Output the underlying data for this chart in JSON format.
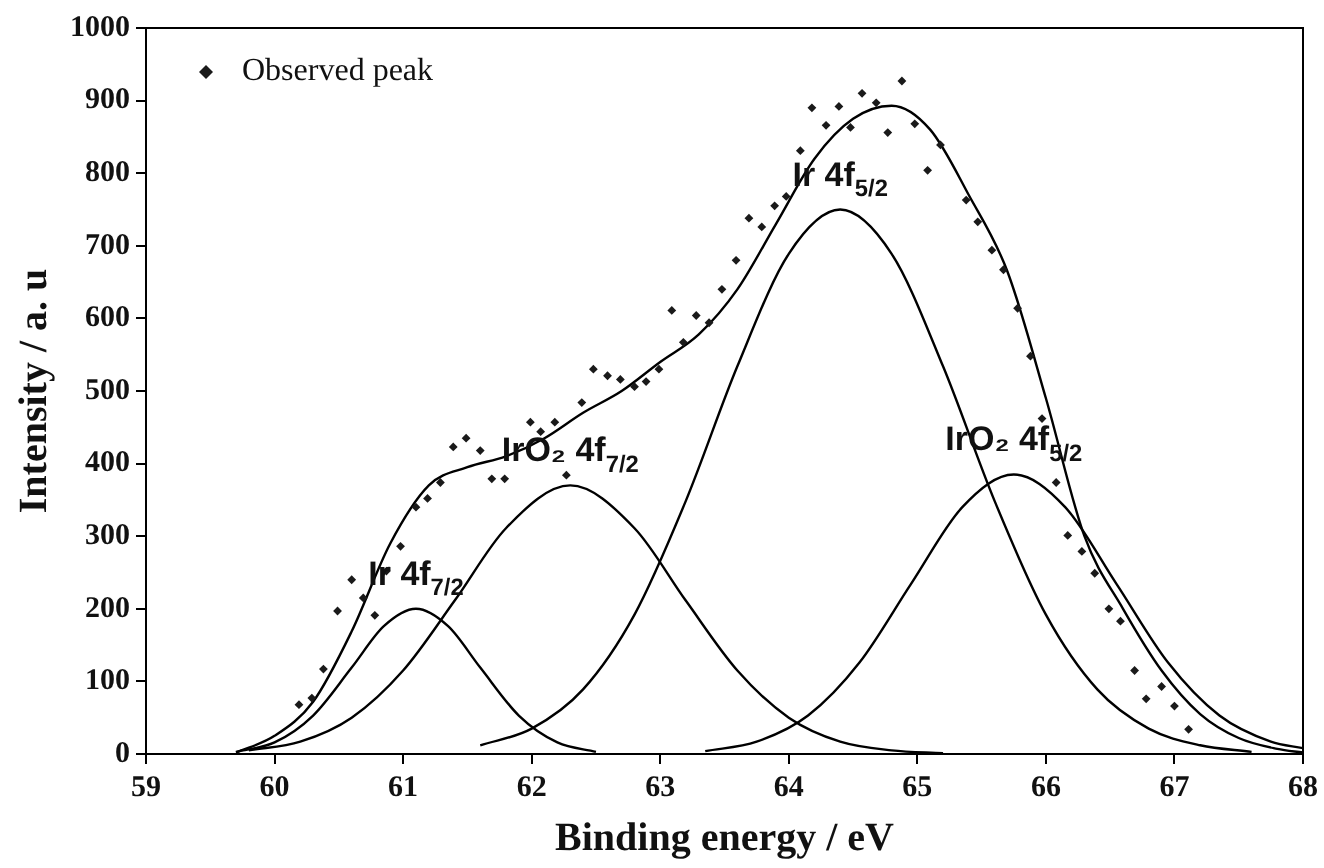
{
  "chart_data": {
    "type": "line",
    "xlabel": "Binding energy / eV",
    "ylabel": "Intensity / a. u",
    "xlim": [
      59,
      68
    ],
    "xticks": [
      59,
      60,
      61,
      62,
      63,
      64,
      65,
      66,
      67,
      68
    ],
    "ylim": [
      0,
      1000
    ],
    "yticks": [
      0,
      100,
      200,
      300,
      400,
      500,
      600,
      700,
      800,
      900,
      1000
    ],
    "grid": false,
    "legend": "top left",
    "line_style": "solid",
    "series": [
      {
        "name": "Observed peak",
        "type": "scatter",
        "marker": "diamond",
        "color": "#1a1a1a",
        "x": [
          60.19,
          60.29,
          60.38,
          60.49,
          60.6,
          60.69,
          60.78,
          60.87,
          60.98,
          61.1,
          61.19,
          61.29,
          61.39,
          61.49,
          61.6,
          61.69,
          61.79,
          61.99,
          62.07,
          62.18,
          62.27,
          62.39,
          62.48,
          62.59,
          62.69,
          62.8,
          62.89,
          62.99,
          63.09,
          63.18,
          63.28,
          63.38,
          63.48,
          63.59,
          63.69,
          63.79,
          63.89,
          63.98,
          64.09,
          64.18,
          64.29,
          64.39,
          64.48,
          64.57,
          64.68,
          64.77,
          64.88,
          64.98,
          65.08,
          65.18,
          65.38,
          65.47,
          65.58,
          65.67,
          65.78,
          65.88,
          65.97,
          66.08,
          66.17,
          66.28,
          66.38,
          66.49,
          66.58,
          66.69,
          66.78,
          66.9,
          67.0,
          67.11
        ],
        "values": [
          68,
          77,
          117,
          197,
          240,
          215,
          191,
          252,
          286,
          340,
          352,
          374,
          423,
          435,
          418,
          379,
          379,
          457,
          444,
          457,
          384,
          484,
          530,
          521,
          516,
          506,
          513,
          530,
          611,
          567,
          604,
          594,
          640,
          680,
          738,
          726,
          755,
          768,
          831,
          890,
          866,
          892,
          863,
          910,
          897,
          856,
          927,
          868,
          804,
          839,
          763,
          733,
          694,
          667,
          614,
          548,
          462,
          374,
          301,
          279,
          249,
          200,
          183,
          115,
          76,
          93,
          66,
          34
        ]
      },
      {
        "type": "line",
        "color": "#000000",
        "x": [
          59.7,
          60.0,
          60.3,
          60.6,
          60.9,
          61.2,
          61.5,
          61.8,
          62.1,
          62.4,
          62.7,
          63.0,
          63.3,
          63.6,
          63.9,
          64.2,
          64.5,
          64.8,
          65.1,
          65.4,
          65.7,
          66.0,
          66.3,
          66.6,
          66.9,
          67.2,
          67.5,
          67.8,
          68.0
        ],
        "values": [
          2,
          25,
          72,
          169,
          290,
          370,
          395,
          410,
          435,
          470,
          500,
          540,
          578,
          640,
          730,
          820,
          875,
          893,
          860,
          770,
          665,
          490,
          300,
          200,
          115,
          55,
          22,
          7,
          2
        ]
      },
      {
        "type": "line",
        "color": "#000000",
        "x": [
          59.7,
          60.0,
          60.3,
          60.6,
          60.85,
          61.1,
          61.35,
          61.6,
          61.9,
          62.2,
          62.5
        ],
        "values": [
          3,
          16,
          53,
          119,
          176,
          200,
          176,
          119,
          53,
          16,
          3
        ]
      },
      {
        "type": "line",
        "color": "#000000",
        "x": [
          59.8,
          60.2,
          60.6,
          61.0,
          61.4,
          61.8,
          62.3,
          62.8,
          63.2,
          63.6,
          64.0,
          64.4,
          64.8,
          65.2
        ],
        "values": [
          5,
          17,
          50,
          115,
          211,
          311,
          370,
          311,
          211,
          115,
          50,
          17,
          5,
          1
        ]
      },
      {
        "type": "line",
        "color": "#000000",
        "x": [
          61.6,
          62.0,
          62.4,
          62.8,
          63.2,
          63.6,
          64.0,
          64.4,
          64.8,
          65.2,
          65.6,
          66.0,
          66.4,
          66.8,
          67.2,
          67.6
        ],
        "values": [
          12,
          35,
          89,
          192,
          349,
          534,
          689,
          750,
          689,
          534,
          349,
          192,
          89,
          35,
          12,
          3
        ]
      },
      {
        "type": "line",
        "color": "#000000",
        "x": [
          63.35,
          63.75,
          64.15,
          64.55,
          64.95,
          65.35,
          65.75,
          66.15,
          66.55,
          66.95,
          67.35,
          67.75,
          68.0
        ],
        "values": [
          4,
          17,
          53,
          126,
          234,
          340,
          385,
          340,
          234,
          126,
          53,
          17,
          8
        ]
      }
    ],
    "annotations": [
      {
        "text": "Ir 4f$_{7/2}$",
        "x": 61.1,
        "y": 200
      },
      {
        "text": "IrO₂ 4f$_{7/2}$",
        "x": 62.3,
        "y": 370
      },
      {
        "text": "Ir 4f$_{5/2}$",
        "x": 64.4,
        "y": 750
      },
      {
        "text": "IrO₂ 4f$_{5/2}$",
        "x": 65.75,
        "y": 385
      }
    ]
  }
}
